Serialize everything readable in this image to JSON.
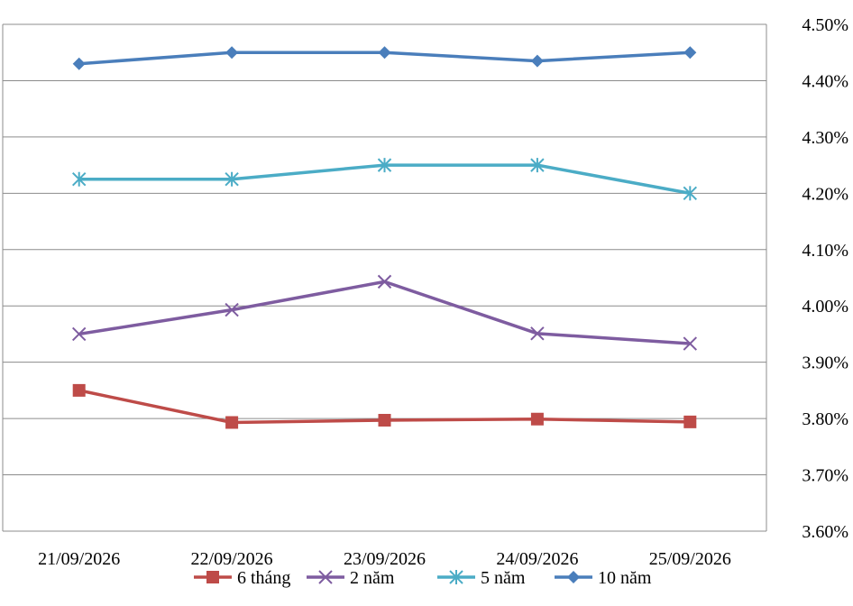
{
  "chart_data": {
    "type": "line",
    "categories": [
      "21/09/2026",
      "22/09/2026",
      "23/09/2026",
      "24/09/2026",
      "25/09/2026"
    ],
    "y_axis": {
      "position": "right",
      "min": 3.6,
      "max": 4.5,
      "step": 0.1,
      "tick_labels": [
        "3.60%",
        "3.70%",
        "3.80%",
        "3.90%",
        "4.00%",
        "4.10%",
        "4.20%",
        "4.30%",
        "4.40%",
        "4.50%"
      ]
    },
    "grid": true,
    "legend_position": "bottom",
    "series": [
      {
        "name": "6 tháng",
        "color": "#BE4B48",
        "marker": "square",
        "values": [
          3.85,
          3.793,
          3.797,
          3.799,
          3.794
        ]
      },
      {
        "name": "2 năm",
        "color": "#7E5CA0",
        "marker": "x",
        "values": [
          3.95,
          3.993,
          4.043,
          3.951,
          3.933
        ]
      },
      {
        "name": "5 năm",
        "color": "#4BACC6",
        "marker": "asterisk",
        "values": [
          4.225,
          4.225,
          4.25,
          4.25,
          4.2
        ]
      },
      {
        "name": "10 năm",
        "color": "#4A7EBB",
        "marker": "diamond",
        "values": [
          4.43,
          4.45,
          4.45,
          4.435,
          4.45
        ]
      }
    ]
  }
}
